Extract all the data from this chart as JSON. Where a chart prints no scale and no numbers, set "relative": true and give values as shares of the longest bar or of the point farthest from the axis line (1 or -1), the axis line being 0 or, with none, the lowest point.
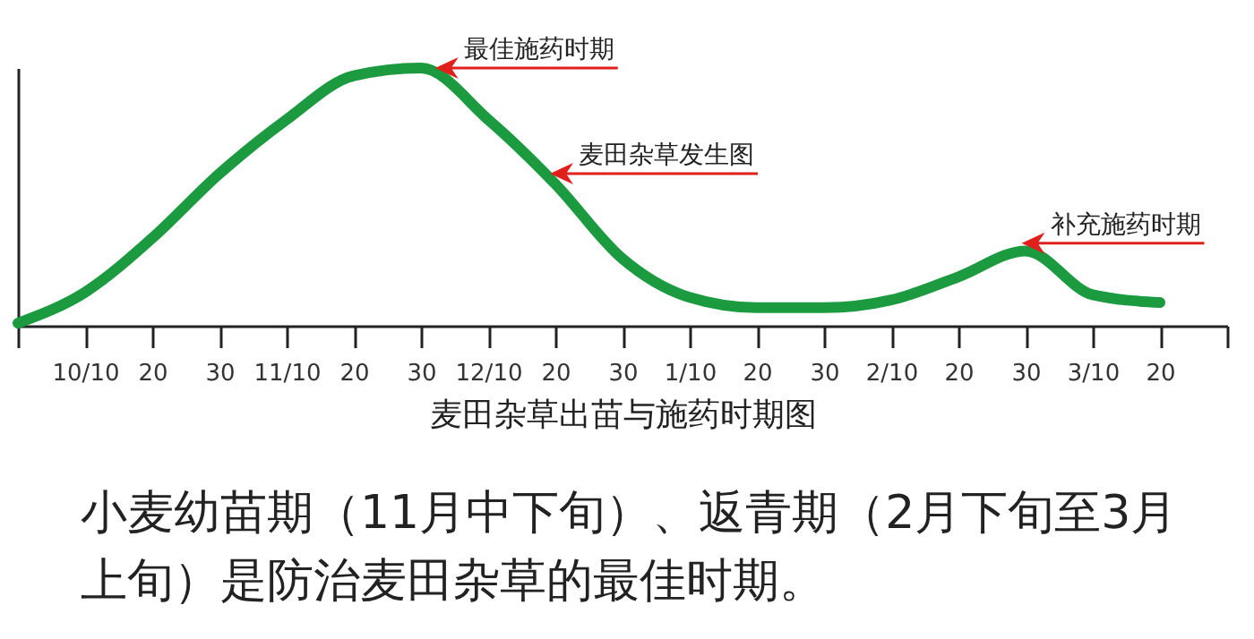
{
  "chart_data": {
    "type": "line",
    "relative": true,
    "xlabel": "麦田杂草出苗与施药时期图",
    "categories": [
      null,
      "10/10",
      "20",
      "30",
      "11/10",
      "20",
      "30",
      "12/10",
      "20",
      "30",
      "1/10",
      "20",
      "30",
      "2/10",
      "20",
      "30",
      "3/10",
      "20",
      null
    ],
    "series": [
      {
        "color": "#1c9a40",
        "values": [
          0.01,
          0.13,
          0.34,
          0.59,
          0.8,
          0.97,
          1.0,
          0.8,
          0.55,
          0.26,
          0.11,
          0.07,
          0.07,
          0.1,
          0.19,
          0.29,
          0.12,
          0.09,
          null
        ]
      }
    ],
    "marker": "none",
    "line_style": "solid",
    "grid": false,
    "annotations": [
      "最佳施药时期",
      "麦田杂草发生图",
      "补充施药时期",
      "小麦幼苗期（11月中下旬）、返青期（2月下旬至3月上旬）是防治麦田杂草的最佳时期。"
    ]
  }
}
